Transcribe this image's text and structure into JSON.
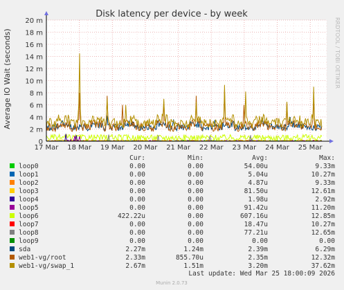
{
  "chart_data": {
    "type": "line",
    "title": "Disk latency per device - by week",
    "ylabel": "Average IO Wait (seconds)",
    "side_label": "RRDTOOL / TOBI OETIKER",
    "ylim": [
      0,
      20
    ],
    "y_unit": "m",
    "y_ticks": [
      0,
      2,
      4,
      6,
      8,
      10,
      12,
      14,
      16,
      18,
      20
    ],
    "y_tick_labels": [
      "0",
      "2 m",
      "4 m",
      "6 m",
      "8 m",
      "10 m",
      "12 m",
      "14 m",
      "16 m",
      "18 m",
      "20 m"
    ],
    "x_ticks": [
      0,
      1,
      2,
      3,
      4,
      5,
      6,
      7,
      8
    ],
    "x_tick_labels": [
      "17 Mar",
      "18 Mar",
      "19 Mar",
      "20 Mar",
      "21 Mar",
      "22 Mar",
      "23 Mar",
      "24 Mar",
      "25 Mar"
    ],
    "xlim": [
      0,
      8.5
    ],
    "grid": true,
    "legend_headers": [
      "Cur:",
      "Min:",
      "Avg:",
      "Max:"
    ],
    "series": [
      {
        "name": "loop0",
        "color": "#00cc00",
        "cur": "0.00",
        "min": "0.00",
        "avg": "54.00u",
        "max": "9.33m",
        "base": 0.05,
        "noise": 0.1,
        "spikes": []
      },
      {
        "name": "loop1",
        "color": "#0066b3",
        "cur": "0.00",
        "min": "0.00",
        "avg": "5.04u",
        "max": "10.27m",
        "base": 0.0,
        "noise": 0.02,
        "spikes": []
      },
      {
        "name": "loop2",
        "color": "#ff8000",
        "cur": "0.00",
        "min": "0.00",
        "avg": "4.87u",
        "max": "9.33m",
        "base": 0.0,
        "noise": 0.02,
        "spikes": []
      },
      {
        "name": "loop3",
        "color": "#ffcc00",
        "cur": "0.00",
        "min": "0.00",
        "avg": "81.50u",
        "max": "12.61m",
        "base": 0.08,
        "noise": 0.15,
        "spikes": []
      },
      {
        "name": "loop4",
        "color": "#330099",
        "cur": "0.00",
        "min": "0.00",
        "avg": "1.98u",
        "max": "2.92m",
        "base": 0.0,
        "noise": 0.01,
        "spikes": [
          [
            0.6,
            1.2
          ],
          [
            0.9,
            1.0
          ]
        ]
      },
      {
        "name": "loop5",
        "color": "#990099",
        "cur": "0.00",
        "min": "0.00",
        "avg": "91.42u",
        "max": "11.20m",
        "base": 0.0,
        "noise": 0.05,
        "spikes": [
          [
            0.7,
            1.0
          ],
          [
            0.85,
            0.9
          ],
          [
            1.0,
            0.8
          ]
        ]
      },
      {
        "name": "loop6",
        "color": "#ccff00",
        "cur": "422.22u",
        "min": "0.00",
        "avg": "607.16u",
        "max": "12.85m",
        "base": 0.6,
        "noise": 0.5,
        "spikes": []
      },
      {
        "name": "loop7",
        "color": "#ff0000",
        "cur": "0.00",
        "min": "0.00",
        "avg": "18.47u",
        "max": "10.27m",
        "base": 0.0,
        "noise": 0.04,
        "spikes": []
      },
      {
        "name": "loop8",
        "color": "#808080",
        "cur": "0.00",
        "min": "0.00",
        "avg": "77.21u",
        "max": "12.65m",
        "base": 0.0,
        "noise": 0.05,
        "spikes": [
          [
            1.9,
            1.1
          ],
          [
            3.4,
            1.0
          ],
          [
            4.95,
            0.9
          ],
          [
            6.2,
            1.0
          ]
        ]
      },
      {
        "name": "loop9",
        "color": "#008f00",
        "cur": "0.00",
        "min": "0.00",
        "avg": "0.00",
        "max": "0.00",
        "base": 0.0,
        "noise": 0.0,
        "spikes": []
      },
      {
        "name": "sda",
        "color": "#00487d",
        "cur": "2.27m",
        "min": "1.24m",
        "avg": "2.39m",
        "max": "6.29m",
        "base": 2.3,
        "noise": 0.6,
        "spikes": [
          [
            1.85,
            4.2
          ],
          [
            2.5,
            3.4
          ],
          [
            3.85,
            3.6
          ],
          [
            5.1,
            3.5
          ],
          [
            6.55,
            3.8
          ],
          [
            7.4,
            4.0
          ]
        ]
      },
      {
        "name": "web1-vg/root",
        "color": "#b35a00",
        "cur": "2.33m",
        "min": "855.70u",
        "avg": "2.35m",
        "max": "12.32m",
        "base": 2.3,
        "noise": 0.7,
        "spikes": [
          [
            1.0,
            8.0
          ],
          [
            1.85,
            7.5
          ],
          [
            2.3,
            6.0
          ],
          [
            3.55,
            6.5
          ],
          [
            4.55,
            7.5
          ],
          [
            5.4,
            8.5
          ],
          [
            6.0,
            6.0
          ],
          [
            7.3,
            6.5
          ],
          [
            8.1,
            7.0
          ]
        ]
      },
      {
        "name": "web1-vg/swap_1",
        "color": "#b38f00",
        "cur": "2.67m",
        "min": "1.51m",
        "avg": "3.20m",
        "max": "37.62m",
        "base": 3.0,
        "noise": 0.8,
        "spikes": [
          [
            1.0,
            14.5
          ],
          [
            1.85,
            7.0
          ],
          [
            2.4,
            6.0
          ],
          [
            3.55,
            7.0
          ],
          [
            4.55,
            6.5
          ],
          [
            5.4,
            9.3
          ],
          [
            6.05,
            8.2
          ],
          [
            7.3,
            6.5
          ],
          [
            8.1,
            9.0
          ]
        ]
      }
    ]
  },
  "footer": {
    "last_update": "Last update: Wed Mar 25 18:00:09 2026",
    "generator": "Munin 2.0.73"
  }
}
